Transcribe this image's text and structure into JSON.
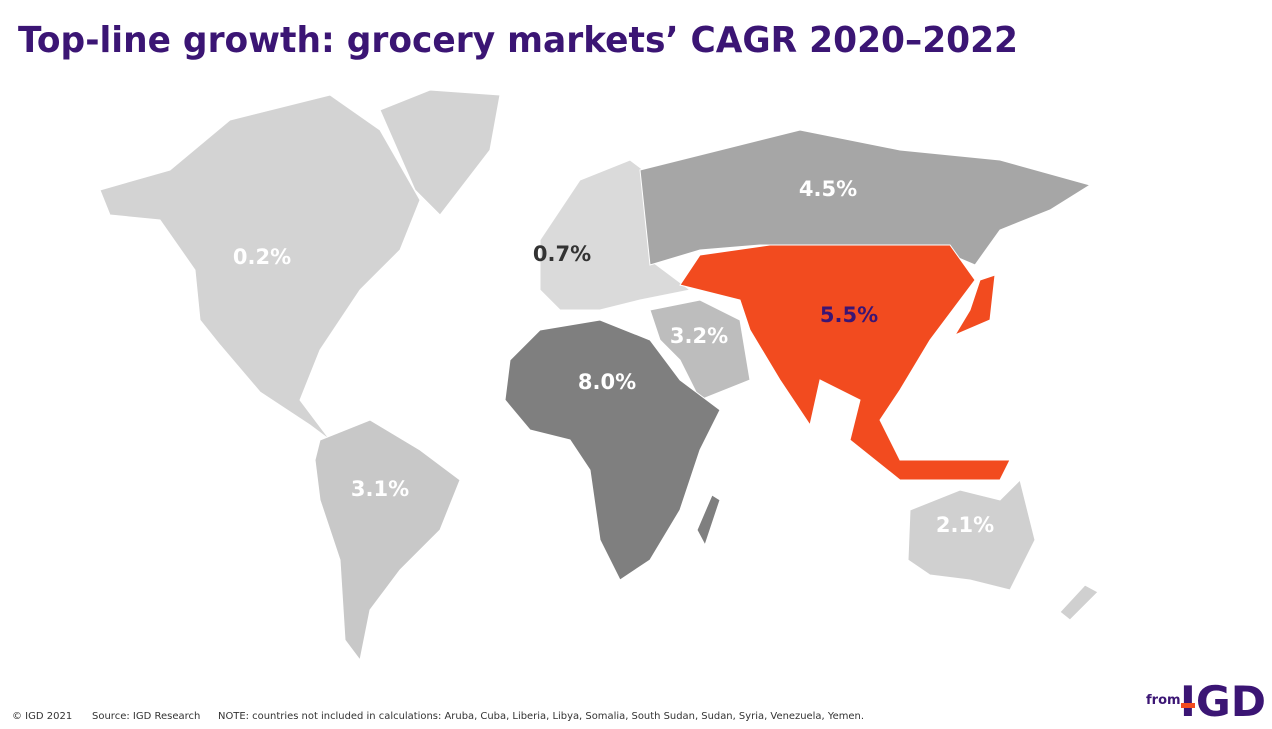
{
  "title": "Top-line growth: grocery markets’ CAGR 2020–2022",
  "regions": [
    {
      "value": 0.2,
      "value_label": "0.2%",
      "color": "#d3d3d3",
      "label_color": "#ffffff"
    },
    {
      "value": 0.7,
      "value_label": "0.7%",
      "color": "#dadada",
      "label_color": "#333333"
    },
    {
      "value": 4.5,
      "value_label": "4.5%",
      "color": "#a6a6a6",
      "label_color": "#ffffff"
    },
    {
      "value": 5.5,
      "value_label": "5.5%",
      "color": "#f24b1f",
      "label_color": "#3b1574"
    },
    {
      "value": 3.2,
      "value_label": "3.2%",
      "color": "#bdbdbd",
      "label_color": "#ffffff"
    },
    {
      "value": 8.0,
      "value_label": "8.0%",
      "color": "#7f7f7f",
      "label_color": "#ffffff"
    },
    {
      "value": 3.1,
      "value_label": "3.1%",
      "color": "#c8c8c8",
      "label_color": "#ffffff"
    },
    {
      "value": 2.1,
      "value_label": "2.1%",
      "color": "#d0d0d0",
      "label_color": "#ffffff"
    }
  ],
  "footer": {
    "copyright": "© IGD 2021",
    "source": "Source: IGD Research",
    "note": "NOTE: countries not included in calculations: Aruba, Cuba, Liberia, Libya, Somalia, South Sudan, Sudan, Syria, Venezuela, Yemen."
  },
  "logo": {
    "prefix": "from",
    "name": "IGD"
  }
}
